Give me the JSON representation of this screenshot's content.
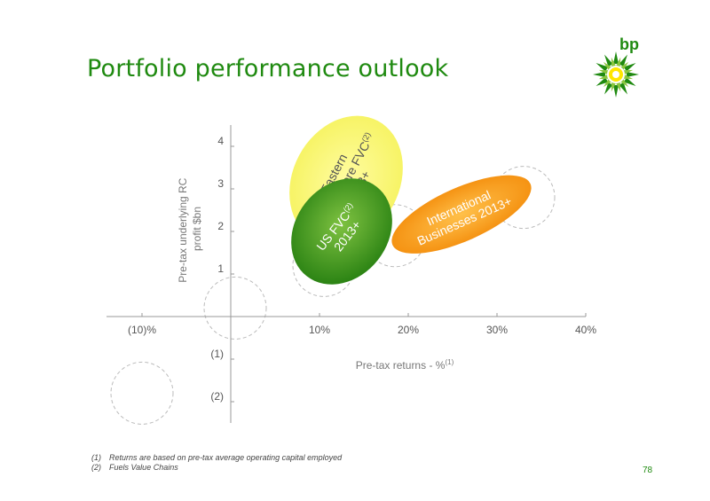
{
  "slide": {
    "title": "Portfolio performance outlook",
    "logo_text": "bp",
    "page_number": "78",
    "footnotes": [
      {
        "num": "(1)",
        "text": "Returns are based on pre-tax average operating capital employed"
      },
      {
        "num": "(2)",
        "text": "Fuels Value Chains"
      }
    ]
  },
  "colors": {
    "brand_green": "#1f8a10",
    "yellow_bubble": "#f5f25a",
    "green_bubble": "#2f8f1a",
    "orange_bubble": "#f79b10",
    "axis": "#999999",
    "dashed": "#bbbbbb"
  },
  "chart_data": {
    "type": "scatter",
    "xlabel": "Pre-tax returns - %",
    "xlabel_sup": "(1)",
    "ylabel_line1": "Pre-tax underlying RC",
    "ylabel_line2": "profit $bn",
    "x_ticks": [
      {
        "value": -10,
        "label": "(10)%"
      },
      {
        "value": 10,
        "label": "10%"
      },
      {
        "value": 20,
        "label": "20%"
      },
      {
        "value": 30,
        "label": "30%"
      },
      {
        "value": 40,
        "label": "40%"
      }
    ],
    "y_ticks": [
      {
        "value": -2,
        "label": "(2)"
      },
      {
        "value": -1,
        "label": "(1)"
      },
      {
        "value": 1,
        "label": "1"
      },
      {
        "value": 2,
        "label": "2"
      },
      {
        "value": 3,
        "label": "3"
      },
      {
        "value": 4,
        "label": "4"
      }
    ],
    "xlim": [
      -14,
      40
    ],
    "ylim": [
      -2.5,
      4.5
    ],
    "reference_circles": [
      {
        "x": 0.5,
        "y": 0.2
      },
      {
        "x": -10,
        "y": -1.8
      },
      {
        "x": 12,
        "y": 2.8
      },
      {
        "x": 18.5,
        "y": 1.9
      },
      {
        "x": 33,
        "y": 2.8
      },
      {
        "x": 10.5,
        "y": 1.2
      }
    ],
    "bubbles": [
      {
        "name": "Eastern Hemisphere FVC 2013+",
        "lines": [
          "Eastern",
          "Hemisphere FVC",
          "2013+"
        ],
        "sup_after_line": 1,
        "sup": "(2)",
        "x": 13,
        "y": 3.2,
        "color": "yellow"
      },
      {
        "name": "US FVC 2013+",
        "lines": [
          "US FVC",
          " 2013+"
        ],
        "sup_after_line": 0,
        "sup": "(2)",
        "x": 12.5,
        "y": 2.0,
        "color": "green"
      },
      {
        "name": "International Businesses 2013+",
        "lines": [
          "International",
          "Businesses 2013+"
        ],
        "sup_after_line": -1,
        "sup": "",
        "x": 26,
        "y": 2.4,
        "color": "orange"
      }
    ]
  }
}
